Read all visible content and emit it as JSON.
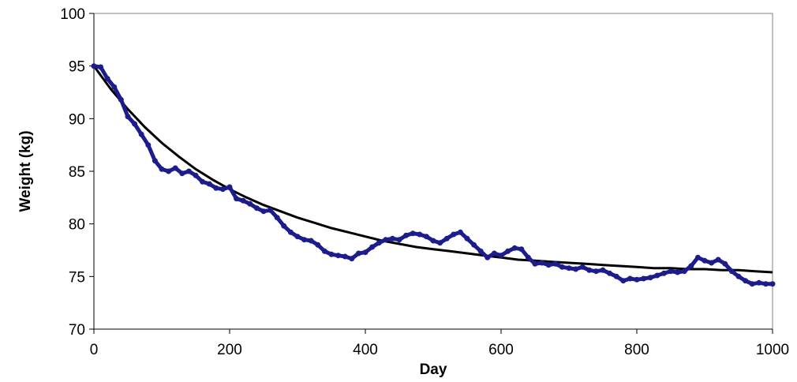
{
  "chart_data": {
    "type": "line",
    "title": "",
    "xlabel": "Day",
    "ylabel": "Weight (kg)",
    "xlim": [
      0,
      1000
    ],
    "ylim": [
      70,
      100
    ],
    "x_ticks": [
      0,
      200,
      400,
      600,
      800,
      1000
    ],
    "y_ticks": [
      70,
      75,
      80,
      85,
      90,
      95,
      100
    ],
    "grid": false,
    "legend": "none",
    "series": [
      {
        "role": "measured",
        "style": "markers",
        "color": "#1c1c8c",
        "points": [
          [
            0,
            95.0
          ],
          [
            10,
            94.9
          ],
          [
            20,
            93.8
          ],
          [
            30,
            93.0
          ],
          [
            40,
            91.8
          ],
          [
            50,
            90.2
          ],
          [
            60,
            89.5
          ],
          [
            70,
            88.5
          ],
          [
            80,
            87.5
          ],
          [
            90,
            86.0
          ],
          [
            100,
            85.2
          ],
          [
            110,
            85.0
          ],
          [
            120,
            85.3
          ],
          [
            130,
            84.8
          ],
          [
            140,
            85.0
          ],
          [
            150,
            84.6
          ],
          [
            160,
            84.0
          ],
          [
            170,
            83.8
          ],
          [
            180,
            83.4
          ],
          [
            190,
            83.3
          ],
          [
            200,
            83.5
          ],
          [
            210,
            82.4
          ],
          [
            220,
            82.2
          ],
          [
            230,
            81.9
          ],
          [
            240,
            81.5
          ],
          [
            250,
            81.2
          ],
          [
            260,
            81.3
          ],
          [
            270,
            80.6
          ],
          [
            280,
            79.8
          ],
          [
            290,
            79.2
          ],
          [
            300,
            78.8
          ],
          [
            310,
            78.5
          ],
          [
            320,
            78.4
          ],
          [
            330,
            78.0
          ],
          [
            340,
            77.4
          ],
          [
            350,
            77.1
          ],
          [
            360,
            77.0
          ],
          [
            370,
            76.9
          ],
          [
            380,
            76.7
          ],
          [
            390,
            77.2
          ],
          [
            400,
            77.3
          ],
          [
            410,
            77.8
          ],
          [
            420,
            78.2
          ],
          [
            430,
            78.5
          ],
          [
            440,
            78.6
          ],
          [
            450,
            78.5
          ],
          [
            460,
            78.9
          ],
          [
            470,
            79.1
          ],
          [
            480,
            79.0
          ],
          [
            490,
            78.8
          ],
          [
            500,
            78.4
          ],
          [
            510,
            78.2
          ],
          [
            520,
            78.6
          ],
          [
            530,
            79.0
          ],
          [
            540,
            79.2
          ],
          [
            550,
            78.6
          ],
          [
            560,
            78.0
          ],
          [
            570,
            77.4
          ],
          [
            580,
            76.8
          ],
          [
            590,
            77.2
          ],
          [
            600,
            77.0
          ],
          [
            610,
            77.4
          ],
          [
            620,
            77.7
          ],
          [
            630,
            77.6
          ],
          [
            640,
            76.8
          ],
          [
            650,
            76.2
          ],
          [
            660,
            76.3
          ],
          [
            670,
            76.1
          ],
          [
            680,
            76.2
          ],
          [
            690,
            75.9
          ],
          [
            700,
            75.8
          ],
          [
            710,
            75.7
          ],
          [
            720,
            75.9
          ],
          [
            730,
            75.6
          ],
          [
            740,
            75.5
          ],
          [
            750,
            75.6
          ],
          [
            760,
            75.3
          ],
          [
            770,
            75.0
          ],
          [
            780,
            74.6
          ],
          [
            790,
            74.8
          ],
          [
            800,
            74.7
          ],
          [
            810,
            74.8
          ],
          [
            820,
            74.9
          ],
          [
            830,
            75.1
          ],
          [
            840,
            75.3
          ],
          [
            850,
            75.5
          ],
          [
            860,
            75.4
          ],
          [
            870,
            75.5
          ],
          [
            880,
            76.0
          ],
          [
            890,
            76.8
          ],
          [
            900,
            76.5
          ],
          [
            910,
            76.3
          ],
          [
            920,
            76.6
          ],
          [
            930,
            76.2
          ],
          [
            940,
            75.5
          ],
          [
            950,
            75.0
          ],
          [
            960,
            74.6
          ],
          [
            970,
            74.3
          ],
          [
            980,
            74.4
          ],
          [
            990,
            74.3
          ],
          [
            1000,
            74.3
          ]
        ]
      },
      {
        "role": "fitted",
        "style": "line",
        "color": "#000000",
        "points": [
          [
            0,
            95.0
          ],
          [
            25,
            92.8
          ],
          [
            50,
            90.9
          ],
          [
            75,
            89.2
          ],
          [
            100,
            87.7
          ],
          [
            125,
            86.4
          ],
          [
            150,
            85.2
          ],
          [
            175,
            84.2
          ],
          [
            200,
            83.3
          ],
          [
            225,
            82.5
          ],
          [
            250,
            81.8
          ],
          [
            275,
            81.2
          ],
          [
            300,
            80.6
          ],
          [
            325,
            80.1
          ],
          [
            350,
            79.6
          ],
          [
            375,
            79.2
          ],
          [
            400,
            78.8
          ],
          [
            425,
            78.4
          ],
          [
            450,
            78.1
          ],
          [
            475,
            77.8
          ],
          [
            500,
            77.6
          ],
          [
            525,
            77.4
          ],
          [
            550,
            77.2
          ],
          [
            575,
            77.0
          ],
          [
            600,
            76.8
          ],
          [
            625,
            76.6
          ],
          [
            650,
            76.5
          ],
          [
            675,
            76.4
          ],
          [
            700,
            76.3
          ],
          [
            725,
            76.2
          ],
          [
            750,
            76.1
          ],
          [
            775,
            76.0
          ],
          [
            800,
            75.9
          ],
          [
            825,
            75.8
          ],
          [
            850,
            75.8
          ],
          [
            875,
            75.7
          ],
          [
            900,
            75.7
          ],
          [
            925,
            75.6
          ],
          [
            950,
            75.6
          ],
          [
            975,
            75.5
          ],
          [
            1000,
            75.4
          ]
        ]
      }
    ]
  }
}
